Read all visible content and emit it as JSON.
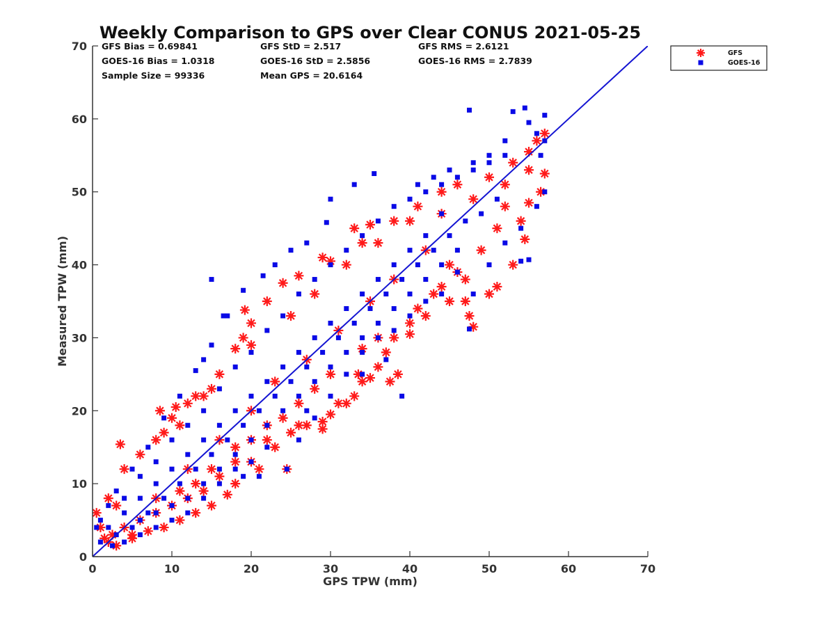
{
  "chart_data": {
    "type": "scatter",
    "title": "Weekly Comparison to GPS over Clear CONUS 2021-05-25",
    "xlabel": "GPS TPW (mm)",
    "ylabel": "Measured TPW (mm)",
    "xlim": [
      0,
      70
    ],
    "ylim": [
      0,
      70
    ],
    "xticks": [
      0,
      10,
      20,
      30,
      40,
      50,
      60,
      70
    ],
    "yticks": [
      0,
      10,
      20,
      30,
      40,
      50,
      60,
      70
    ],
    "grid": false,
    "legend_position": "outside-top-right",
    "reference_line": {
      "x": [
        0,
        70
      ],
      "y": [
        0,
        70
      ],
      "color": "#1414d2"
    },
    "stats": [
      [
        "GFS Bias = 0.69841",
        "GFS StD = 2.517",
        "GFS RMS = 2.6121"
      ],
      [
        "GOES-16 Bias = 1.0318",
        "GOES-16 StD = 2.5856",
        "GOES-16 RMS = 2.7839"
      ],
      [
        "Sample Size = 99336",
        "Mean GPS = 20.6164"
      ]
    ],
    "series": [
      {
        "name": "GFS",
        "marker": "asterisk",
        "color": "#ff1a1a",
        "points": [
          [
            3.5,
            15.4
          ],
          [
            3,
            7
          ],
          [
            1,
            4
          ],
          [
            0.5,
            6
          ],
          [
            2,
            2
          ],
          [
            5,
            3
          ],
          [
            8.5,
            20
          ],
          [
            9,
            17
          ],
          [
            10.5,
            20.5
          ],
          [
            12,
            21
          ],
          [
            11,
            18
          ],
          [
            14,
            22
          ],
          [
            15,
            23
          ],
          [
            18,
            28.5
          ],
          [
            19,
            30
          ],
          [
            19.2,
            33.8
          ],
          [
            20,
            32
          ],
          [
            22,
            35
          ],
          [
            24,
            37.5
          ],
          [
            26,
            38.5
          ],
          [
            29,
            41
          ],
          [
            30,
            40.5
          ],
          [
            33,
            45
          ],
          [
            35,
            45.5
          ],
          [
            34,
            43
          ],
          [
            38,
            46
          ],
          [
            41,
            48
          ],
          [
            44,
            50
          ],
          [
            46,
            51
          ],
          [
            50,
            52
          ],
          [
            53,
            54
          ],
          [
            55,
            55.5
          ],
          [
            56,
            57
          ],
          [
            57,
            58
          ],
          [
            57,
            52.5
          ],
          [
            56.5,
            50
          ],
          [
            55,
            48.5
          ],
          [
            54,
            46
          ],
          [
            54.5,
            43.5
          ],
          [
            53,
            40
          ],
          [
            51,
            37
          ],
          [
            50,
            36
          ],
          [
            48,
            31.5
          ],
          [
            47.5,
            33
          ],
          [
            47,
            35
          ],
          [
            45,
            35
          ],
          [
            43,
            36
          ],
          [
            41,
            34
          ],
          [
            40,
            32
          ],
          [
            38,
            30
          ],
          [
            37,
            28
          ],
          [
            36,
            26
          ],
          [
            34,
            24
          ],
          [
            33,
            22
          ],
          [
            32,
            21
          ],
          [
            30,
            19.5
          ],
          [
            29,
            18.5
          ],
          [
            27,
            18
          ],
          [
            25,
            17
          ],
          [
            24.5,
            12
          ],
          [
            23,
            15
          ],
          [
            21,
            12
          ],
          [
            18,
            10
          ],
          [
            17,
            8.5
          ],
          [
            15,
            7
          ],
          [
            13,
            6
          ],
          [
            11,
            5
          ],
          [
            9,
            4
          ],
          [
            7,
            3.5
          ],
          [
            5,
            2.5
          ],
          [
            3,
            1.5
          ],
          [
            40,
            30.5
          ],
          [
            38.5,
            25
          ],
          [
            37.5,
            24
          ],
          [
            35,
            24.5
          ],
          [
            33.5,
            25
          ],
          [
            31,
            21
          ],
          [
            29,
            17.5
          ],
          [
            26,
            18
          ],
          [
            22,
            16
          ],
          [
            20,
            13
          ],
          [
            18,
            13
          ],
          [
            16,
            11
          ],
          [
            14,
            9
          ],
          [
            12,
            8
          ],
          [
            10,
            7
          ],
          [
            8,
            6
          ],
          [
            6,
            5
          ],
          [
            4,
            4
          ],
          [
            2.5,
            3
          ],
          [
            1.5,
            2.5
          ],
          [
            2,
            8
          ],
          [
            4,
            12
          ],
          [
            6,
            14
          ],
          [
            8,
            16
          ],
          [
            10,
            19
          ],
          [
            13,
            22
          ],
          [
            16,
            25
          ],
          [
            20,
            29
          ],
          [
            25,
            33
          ],
          [
            28,
            36
          ],
          [
            32,
            40
          ],
          [
            36,
            43
          ],
          [
            40,
            46
          ],
          [
            44,
            47
          ],
          [
            48,
            49
          ],
          [
            52,
            51
          ],
          [
            55,
            53
          ],
          [
            45,
            40
          ],
          [
            47,
            38
          ],
          [
            49,
            42
          ],
          [
            51,
            45
          ],
          [
            52,
            48
          ],
          [
            42,
            42
          ],
          [
            38,
            38
          ],
          [
            35,
            35
          ],
          [
            31,
            31
          ],
          [
            27,
            27
          ],
          [
            23,
            24
          ],
          [
            20,
            20
          ],
          [
            16,
            16
          ],
          [
            12,
            12
          ],
          [
            8,
            8
          ],
          [
            46,
            39
          ],
          [
            44,
            37
          ],
          [
            42,
            33
          ],
          [
            36,
            30
          ],
          [
            34,
            28.5
          ],
          [
            30,
            25
          ],
          [
            28,
            23
          ],
          [
            26,
            21
          ],
          [
            24,
            19
          ],
          [
            22,
            18
          ],
          [
            20,
            16
          ],
          [
            18,
            15
          ],
          [
            15,
            12
          ],
          [
            13,
            10
          ],
          [
            11,
            9
          ]
        ]
      },
      {
        "name": "GOES-16",
        "marker": "square",
        "color": "#0a0ae6",
        "points": [
          [
            47.5,
            61.2
          ],
          [
            54.5,
            61.5
          ],
          [
            53,
            61
          ],
          [
            57,
            60.5
          ],
          [
            55,
            59.5
          ],
          [
            56,
            58
          ],
          [
            52,
            57
          ],
          [
            50,
            55
          ],
          [
            48,
            54
          ],
          [
            45,
            53
          ],
          [
            43,
            52
          ],
          [
            41,
            51
          ],
          [
            35.5,
            52.5
          ],
          [
            33,
            51
          ],
          [
            30,
            49
          ],
          [
            29.5,
            45.8
          ],
          [
            27,
            43
          ],
          [
            25,
            42
          ],
          [
            23,
            40
          ],
          [
            21.5,
            38.5
          ],
          [
            19,
            36.5
          ],
          [
            17,
            33
          ],
          [
            15,
            29
          ],
          [
            14,
            27
          ],
          [
            13,
            25.5
          ],
          [
            11,
            22
          ],
          [
            9,
            19
          ],
          [
            7,
            15
          ],
          [
            5,
            12
          ],
          [
            3,
            9
          ],
          [
            2,
            7
          ],
          [
            1,
            5
          ],
          [
            0.5,
            4
          ],
          [
            1,
            2
          ],
          [
            2.5,
            1.5
          ],
          [
            4,
            2
          ],
          [
            6,
            3
          ],
          [
            8,
            4
          ],
          [
            10,
            5
          ],
          [
            12,
            6
          ],
          [
            14,
            8
          ],
          [
            16,
            10
          ],
          [
            18,
            12
          ],
          [
            20,
            13
          ],
          [
            21,
            11
          ],
          [
            24.5,
            12
          ],
          [
            26,
            16
          ],
          [
            28,
            19
          ],
          [
            30,
            22
          ],
          [
            32,
            25
          ],
          [
            34,
            28
          ],
          [
            36,
            30
          ],
          [
            38,
            31
          ],
          [
            40,
            33
          ],
          [
            42,
            35
          ],
          [
            44,
            36
          ],
          [
            46,
            39
          ],
          [
            47.5,
            31.2
          ],
          [
            48,
            36
          ],
          [
            50,
            40
          ],
          [
            52,
            43
          ],
          [
            54,
            45
          ],
          [
            55,
            40.7
          ],
          [
            54,
            40.5
          ],
          [
            56,
            48
          ],
          [
            57,
            50
          ],
          [
            57,
            57
          ],
          [
            56.5,
            55
          ],
          [
            51,
            49
          ],
          [
            49,
            47
          ],
          [
            47,
            46
          ],
          [
            45,
            44
          ],
          [
            43,
            42
          ],
          [
            41,
            40
          ],
          [
            39,
            38
          ],
          [
            37,
            36
          ],
          [
            35,
            34
          ],
          [
            33,
            32
          ],
          [
            31,
            30
          ],
          [
            29,
            28
          ],
          [
            27,
            26
          ],
          [
            25,
            24
          ],
          [
            23,
            22
          ],
          [
            21,
            20
          ],
          [
            19,
            18
          ],
          [
            17,
            16
          ],
          [
            15,
            14
          ],
          [
            13,
            12
          ],
          [
            11,
            10
          ],
          [
            9,
            8
          ],
          [
            7,
            6
          ],
          [
            5,
            4
          ],
          [
            3,
            3
          ],
          [
            2,
            4
          ],
          [
            4,
            8
          ],
          [
            6,
            11
          ],
          [
            8,
            13
          ],
          [
            10,
            16
          ],
          [
            12,
            18
          ],
          [
            14,
            20
          ],
          [
            16,
            23
          ],
          [
            18,
            26
          ],
          [
            20,
            28
          ],
          [
            22,
            31
          ],
          [
            24,
            33
          ],
          [
            26,
            36
          ],
          [
            28,
            38
          ],
          [
            30,
            40
          ],
          [
            32,
            42
          ],
          [
            34,
            44
          ],
          [
            36,
            46
          ],
          [
            38,
            48
          ],
          [
            40,
            49
          ],
          [
            42,
            50
          ],
          [
            44,
            51
          ],
          [
            46,
            52
          ],
          [
            48,
            53
          ],
          [
            50,
            54
          ],
          [
            52,
            55
          ],
          [
            44,
            47
          ],
          [
            42,
            44
          ],
          [
            40,
            42
          ],
          [
            38,
            40
          ],
          [
            36,
            38
          ],
          [
            34,
            36
          ],
          [
            32,
            34
          ],
          [
            30,
            32
          ],
          [
            28,
            30
          ],
          [
            26,
            28
          ],
          [
            24,
            26
          ],
          [
            22,
            24
          ],
          [
            20,
            22
          ],
          [
            18,
            20
          ],
          [
            16,
            18
          ],
          [
            14,
            16
          ],
          [
            12,
            14
          ],
          [
            10,
            12
          ],
          [
            8,
            10
          ],
          [
            6,
            8
          ],
          [
            4,
            6
          ],
          [
            46,
            42
          ],
          [
            44,
            40
          ],
          [
            42,
            38
          ],
          [
            40,
            36
          ],
          [
            38,
            34
          ],
          [
            36,
            32
          ],
          [
            34,
            30
          ],
          [
            32,
            28
          ],
          [
            30,
            26
          ],
          [
            28,
            24
          ],
          [
            26,
            22
          ],
          [
            24,
            20
          ],
          [
            22,
            18
          ],
          [
            20,
            16
          ],
          [
            18,
            14
          ],
          [
            16,
            12
          ],
          [
            14,
            10
          ],
          [
            12,
            8
          ],
          [
            10,
            7
          ],
          [
            8,
            6
          ],
          [
            6,
            5
          ],
          [
            15,
            38
          ],
          [
            16.5,
            33
          ],
          [
            37,
            27
          ],
          [
            39,
            22
          ],
          [
            34,
            25
          ],
          [
            27,
            20
          ],
          [
            22,
            15
          ],
          [
            19,
            11
          ]
        ]
      }
    ]
  }
}
